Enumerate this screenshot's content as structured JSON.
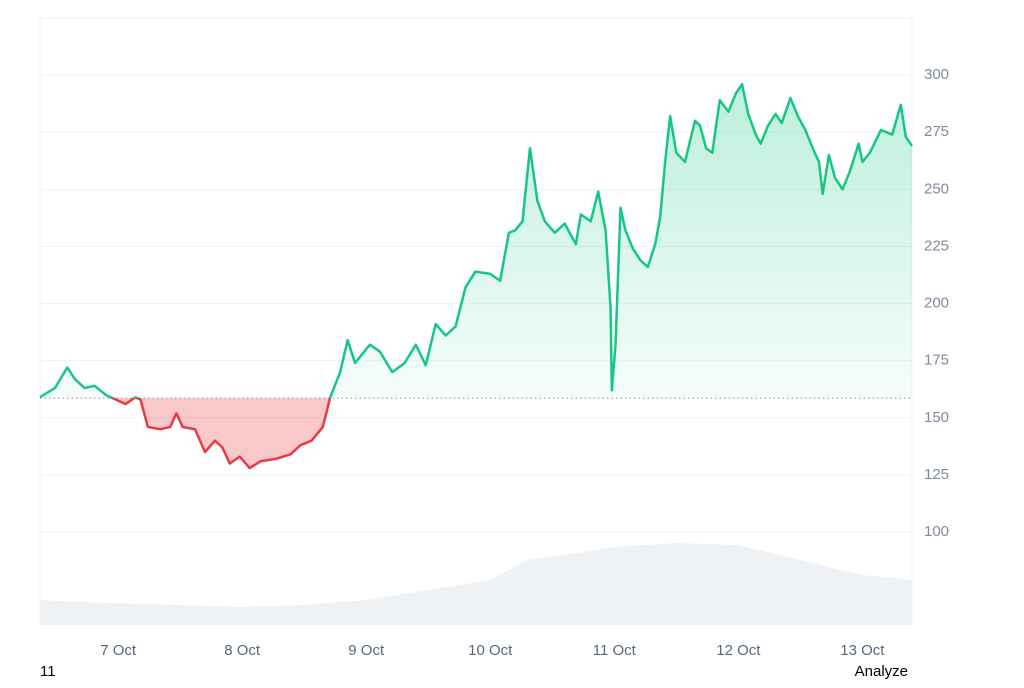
{
  "chart_data": {
    "type": "line",
    "x": [
      6.37,
      6.49,
      6.59,
      6.65,
      6.73,
      6.81,
      6.9,
      6.98,
      7.06,
      7.14,
      7.18,
      7.24,
      7.34,
      7.42,
      7.47,
      7.52,
      7.62,
      7.7,
      7.78,
      7.84,
      7.9,
      7.98,
      8.06,
      8.15,
      8.27,
      8.39,
      8.47,
      8.56,
      8.65,
      8.71,
      8.79,
      8.85,
      8.91,
      9.03,
      9.11,
      9.21,
      9.31,
      9.4,
      9.48,
      9.56,
      9.64,
      9.72,
      9.8,
      9.88,
      10.0,
      10.08,
      10.15,
      10.2,
      10.26,
      10.32,
      10.38,
      10.44,
      10.52,
      10.6,
      10.69,
      10.73,
      10.81,
      10.87,
      10.93,
      10.97,
      10.98,
      11.01,
      11.05,
      11.09,
      11.15,
      11.21,
      11.27,
      11.33,
      11.37,
      11.41,
      11.45,
      11.5,
      11.57,
      11.65,
      11.69,
      11.74,
      11.79,
      11.85,
      11.92,
      11.98,
      12.03,
      12.08,
      12.14,
      12.18,
      12.24,
      12.3,
      12.35,
      12.42,
      12.48,
      12.54,
      12.6,
      12.65,
      12.68,
      12.73,
      12.78,
      12.84,
      12.9,
      12.97,
      13.0,
      13.06,
      13.15,
      13.24,
      13.31,
      13.35,
      13.4
    ],
    "series": [
      {
        "color_up": "#16c784",
        "color_down": "#ea3943",
        "values": [
          159,
          163,
          172,
          167,
          163,
          164,
          160,
          158,
          156,
          159,
          158,
          146,
          145,
          146,
          152,
          146,
          145,
          135,
          140,
          137,
          130,
          133,
          128,
          131,
          132,
          134,
          138,
          140,
          146,
          159,
          170,
          184,
          174,
          182,
          179,
          170,
          174,
          182,
          173,
          191,
          186,
          190,
          207,
          214,
          213,
          210,
          231,
          232,
          236,
          268,
          245,
          236,
          231,
          235,
          226,
          239,
          236,
          249,
          232,
          198,
          162,
          182,
          242,
          232,
          224,
          219,
          216,
          226,
          238,
          262,
          282,
          266,
          262,
          280,
          278,
          268,
          266,
          289,
          284,
          292,
          296,
          283,
          274,
          270,
          278,
          283,
          279,
          290,
          282,
          276,
          268,
          262,
          248,
          265,
          255,
          250,
          258,
          270,
          262,
          266,
          276,
          274,
          287,
          273,
          269
        ]
      }
    ],
    "baseline": 158.6,
    "volume": {
      "color": "#eff2f5",
      "x": [
        6.37,
        6.9,
        7.5,
        8.0,
        8.5,
        9.0,
        9.5,
        10.0,
        10.3,
        10.7,
        11.0,
        11.5,
        12.0,
        12.5,
        13.0,
        13.4
      ],
      "values": [
        25,
        22,
        20,
        18,
        20,
        25,
        35,
        45,
        65,
        72,
        78,
        82,
        80,
        65,
        50,
        45
      ],
      "ylim": [
        0,
        100
      ]
    },
    "xlim": [
      6.37,
      13.4
    ],
    "xticks": [
      {
        "value": 7,
        "label": "7 Oct"
      },
      {
        "value": 8,
        "label": "8 Oct"
      },
      {
        "value": 9,
        "label": "9 Oct"
      },
      {
        "value": 10,
        "label": "10 Oct"
      },
      {
        "value": 11,
        "label": "11 Oct"
      },
      {
        "value": 12,
        "label": "12 Oct"
      },
      {
        "value": 13,
        "label": "13 Oct"
      }
    ],
    "ylim": [
      59.3,
      325
    ],
    "yticks": [
      100,
      125,
      150,
      175,
      200,
      225,
      250,
      275,
      300
    ],
    "grid": true,
    "footer_left": "11",
    "footer_right": "Analyze"
  }
}
